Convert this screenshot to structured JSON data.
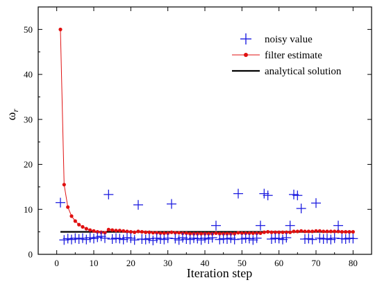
{
  "chart_data": {
    "type": "scatter",
    "title": "",
    "xlabel": "Iteration step",
    "ylabel": "ωr",
    "ylabel_parts": {
      "symbol": "ω",
      "subscript": "r"
    },
    "xlim": [
      -5,
      85
    ],
    "ylim": [
      0,
      55
    ],
    "xticks": [
      0,
      10,
      20,
      30,
      40,
      50,
      60,
      70,
      80
    ],
    "yticks": [
      0,
      10,
      20,
      30,
      40,
      50
    ],
    "xtick_labels": [
      "0",
      "10",
      "20",
      "30",
      "40",
      "50",
      "60",
      "70",
      "80"
    ],
    "ytick_labels": [
      "0",
      "10",
      "20",
      "30",
      "40",
      "50"
    ],
    "grid": false,
    "legend_position": "top-right",
    "series": [
      {
        "name": "noisy value",
        "marker": "plus",
        "color": "#1f1fe0",
        "points": [
          [
            1,
            11.5
          ],
          [
            2,
            3.2
          ],
          [
            3,
            3.5
          ],
          [
            4,
            3.3
          ],
          [
            5,
            3.6
          ],
          [
            6,
            3.4
          ],
          [
            7,
            3.6
          ],
          [
            8,
            3.3
          ],
          [
            9,
            3.7
          ],
          [
            10,
            3.5
          ],
          [
            11,
            3.8
          ],
          [
            12,
            4.0
          ],
          [
            13,
            3.6
          ],
          [
            14,
            13.3
          ],
          [
            15,
            3.4
          ],
          [
            16,
            3.6
          ],
          [
            17,
            3.5
          ],
          [
            18,
            3.3
          ],
          [
            19,
            3.7
          ],
          [
            20,
            3.6
          ],
          [
            21,
            3.2
          ],
          [
            22,
            11.0
          ],
          [
            23,
            3.4
          ],
          [
            24,
            3.3
          ],
          [
            25,
            3.5
          ],
          [
            26,
            3.1
          ],
          [
            27,
            3.6
          ],
          [
            28,
            3.4
          ],
          [
            29,
            3.3
          ],
          [
            30,
            3.6
          ],
          [
            31,
            11.2
          ],
          [
            32,
            3.5
          ],
          [
            33,
            3.2
          ],
          [
            34,
            3.7
          ],
          [
            35,
            3.4
          ],
          [
            36,
            3.3
          ],
          [
            37,
            3.6
          ],
          [
            38,
            3.5
          ],
          [
            39,
            3.2
          ],
          [
            40,
            3.6
          ],
          [
            41,
            3.4
          ],
          [
            42,
            3.7
          ],
          [
            43,
            6.4
          ],
          [
            44,
            3.3
          ],
          [
            45,
            3.5
          ],
          [
            46,
            3.4
          ],
          [
            47,
            3.6
          ],
          [
            48,
            3.3
          ],
          [
            49,
            13.5
          ],
          [
            50,
            3.4
          ],
          [
            51,
            3.6
          ],
          [
            52,
            3.5
          ],
          [
            53,
            3.2
          ],
          [
            54,
            3.6
          ],
          [
            55,
            6.4
          ],
          [
            56,
            13.5
          ],
          [
            57,
            13.1
          ],
          [
            58,
            3.4
          ],
          [
            59,
            3.6
          ],
          [
            60,
            3.5
          ],
          [
            61,
            3.3
          ],
          [
            62,
            3.7
          ],
          [
            63,
            6.4
          ],
          [
            64,
            13.3
          ],
          [
            65,
            13.1
          ],
          [
            66,
            10.2
          ],
          [
            67,
            3.4
          ],
          [
            68,
            3.5
          ],
          [
            69,
            3.3
          ],
          [
            70,
            11.4
          ],
          [
            71,
            3.6
          ],
          [
            72,
            3.4
          ],
          [
            73,
            3.5
          ],
          [
            74,
            3.3
          ],
          [
            75,
            3.6
          ],
          [
            76,
            6.4
          ],
          [
            77,
            3.5
          ],
          [
            78,
            3.4
          ],
          [
            79,
            3.6
          ],
          [
            80,
            3.5
          ]
        ]
      },
      {
        "name": "filter estimate",
        "marker": "dot-line",
        "color": "#e01010",
        "x": [
          1,
          2,
          3,
          4,
          5,
          6,
          7,
          8,
          9,
          10,
          11,
          12,
          13,
          14,
          15,
          16,
          17,
          18,
          19,
          20,
          21,
          22,
          23,
          24,
          25,
          26,
          27,
          28,
          29,
          30,
          31,
          32,
          33,
          34,
          35,
          36,
          37,
          38,
          39,
          40,
          41,
          42,
          43,
          44,
          45,
          46,
          47,
          48,
          49,
          50,
          51,
          52,
          53,
          54,
          55,
          56,
          57,
          58,
          59,
          60,
          61,
          62,
          63,
          64,
          65,
          66,
          67,
          68,
          69,
          70,
          71,
          72,
          73,
          74,
          75,
          76,
          77,
          78,
          79,
          80
        ],
        "y": [
          50.0,
          15.5,
          10.5,
          8.5,
          7.4,
          6.6,
          6.1,
          5.7,
          5.4,
          5.2,
          5.0,
          4.9,
          4.8,
          5.5,
          5.4,
          5.3,
          5.3,
          5.2,
          5.1,
          5.0,
          4.9,
          5.1,
          5.0,
          4.9,
          4.9,
          4.8,
          4.8,
          4.7,
          4.7,
          4.7,
          4.9,
          4.8,
          4.8,
          4.7,
          4.7,
          4.6,
          4.6,
          4.6,
          4.6,
          4.6,
          4.6,
          4.6,
          4.7,
          4.6,
          4.6,
          4.6,
          4.6,
          4.6,
          4.8,
          4.7,
          4.7,
          4.7,
          4.7,
          4.7,
          4.7,
          4.9,
          5.0,
          4.9,
          4.9,
          4.9,
          4.9,
          4.9,
          4.9,
          5.1,
          5.1,
          5.2,
          5.1,
          5.1,
          5.1,
          5.2,
          5.2,
          5.1,
          5.1,
          5.1,
          5.1,
          5.1,
          5.0,
          5.0,
          5.0,
          5.0
        ]
      },
      {
        "name": "analytical solution",
        "marker": "line",
        "color": "#000000",
        "x": [
          1,
          80
        ],
        "y": [
          5.0,
          5.0
        ]
      }
    ]
  },
  "legend": {
    "items": [
      {
        "label": "noisy value",
        "color": "#1f1fe0"
      },
      {
        "label": "filter estimate",
        "color": "#e01010"
      },
      {
        "label": "analytical solution",
        "color": "#000000"
      }
    ]
  }
}
